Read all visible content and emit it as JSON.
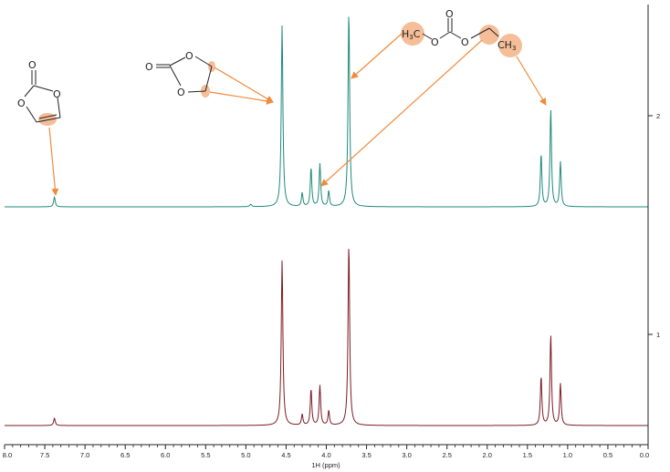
{
  "chart_data": {
    "type": "line",
    "xlabel": "1H (ppm)",
    "x_reversed": true,
    "xlim": [
      8.0,
      0.0
    ],
    "x_ticks": [
      "8.0",
      "7.5",
      "7.0",
      "6.5",
      "6.0",
      "5.5",
      "5.0",
      "4.5",
      "4.0",
      "3.5",
      "3.0",
      "2.5",
      "2.0",
      "1.5",
      "1.0",
      "0.5",
      "0.0"
    ],
    "y_tick_labels": [
      "2",
      "1"
    ],
    "colors": {
      "top": "#1f8a7a",
      "bottom": "#7a1c24",
      "annotation": "#f08a3c",
      "highlight": "#f5bd98"
    },
    "series": [
      {
        "peaks": [
          {
            "ppm": 7.38,
            "height": 0.05,
            "width": 0.012
          },
          {
            "ppm": 4.94,
            "height": 0.012,
            "width": 0.015
          },
          {
            "ppm": 4.55,
            "height": 0.93,
            "width": 0.012
          },
          {
            "ppm": 4.3,
            "height": 0.07,
            "width": 0.011
          },
          {
            "ppm": 4.19,
            "height": 0.2,
            "width": 0.011
          },
          {
            "ppm": 4.08,
            "height": 0.22,
            "width": 0.011
          },
          {
            "ppm": 3.97,
            "height": 0.08,
            "width": 0.011
          },
          {
            "ppm": 3.72,
            "height": 1.0,
            "width": 0.012
          },
          {
            "ppm": 1.33,
            "height": 0.27,
            "width": 0.011
          },
          {
            "ppm": 1.21,
            "height": 0.5,
            "width": 0.011
          },
          {
            "ppm": 1.09,
            "height": 0.23,
            "width": 0.011
          }
        ]
      },
      {
        "peaks": [
          {
            "ppm": 7.38,
            "height": 0.04,
            "width": 0.012
          },
          {
            "ppm": 4.55,
            "height": 0.91,
            "width": 0.012
          },
          {
            "ppm": 4.3,
            "height": 0.06,
            "width": 0.011
          },
          {
            "ppm": 4.19,
            "height": 0.2,
            "width": 0.011
          },
          {
            "ppm": 4.08,
            "height": 0.22,
            "width": 0.011
          },
          {
            "ppm": 3.97,
            "height": 0.08,
            "width": 0.011
          },
          {
            "ppm": 3.72,
            "height": 1.0,
            "width": 0.012
          },
          {
            "ppm": 1.33,
            "height": 0.27,
            "width": 0.011
          },
          {
            "ppm": 1.21,
            "height": 0.5,
            "width": 0.011
          },
          {
            "ppm": 1.09,
            "height": 0.23,
            "width": 0.011
          }
        ]
      }
    ],
    "structures": {
      "vinylene_carbonate": {
        "atoms": [
          "O",
          "O",
          "O"
        ]
      },
      "ethylene_carbonate": {
        "atoms": [
          "O",
          "O",
          "O"
        ]
      },
      "ethyl_methyl_carbonate": {
        "h3c": "H",
        "h3c_sub": "3",
        "h3c_c": "C",
        "atoms": [
          "O",
          "O",
          "O"
        ],
        "ch3": "CH",
        "ch3_sub": "3"
      }
    }
  }
}
